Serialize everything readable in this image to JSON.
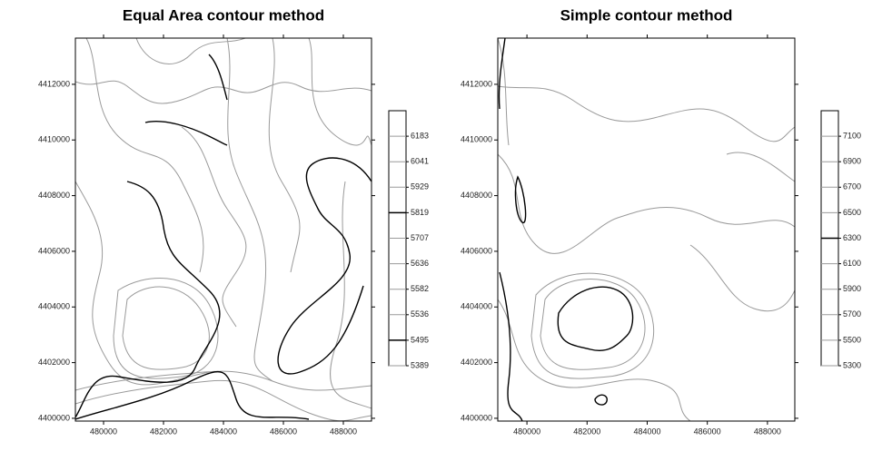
{
  "chart_data": [
    {
      "type": "contour",
      "title": "Equal Area contour method",
      "xlim": [
        479060,
        488940
      ],
      "xticks": [
        480000,
        482000,
        484000,
        486000,
        488000
      ],
      "ylim": [
        4399900,
        4413660
      ],
      "yticks": [
        4400000,
        4402000,
        4404000,
        4406000,
        4408000,
        4410000,
        4412000
      ],
      "levels": [
        5389,
        5495,
        5536,
        5582,
        5636,
        5707,
        5819,
        5929,
        6041,
        6183
      ],
      "bold_levels": [
        5495,
        5819
      ]
    },
    {
      "type": "contour",
      "title": "Simple contour method",
      "xlim": [
        479030,
        488910
      ],
      "xticks": [
        480000,
        482000,
        484000,
        486000,
        488000
      ],
      "ylim": [
        4399900,
        4413660
      ],
      "yticks": [
        4400000,
        4402000,
        4404000,
        4406000,
        4408000,
        4410000,
        4412000
      ],
      "levels": [
        5300,
        5500,
        5700,
        5900,
        6100,
        6300,
        6500,
        6700,
        6900,
        7100
      ],
      "bold_levels": [
        6300
      ]
    }
  ]
}
